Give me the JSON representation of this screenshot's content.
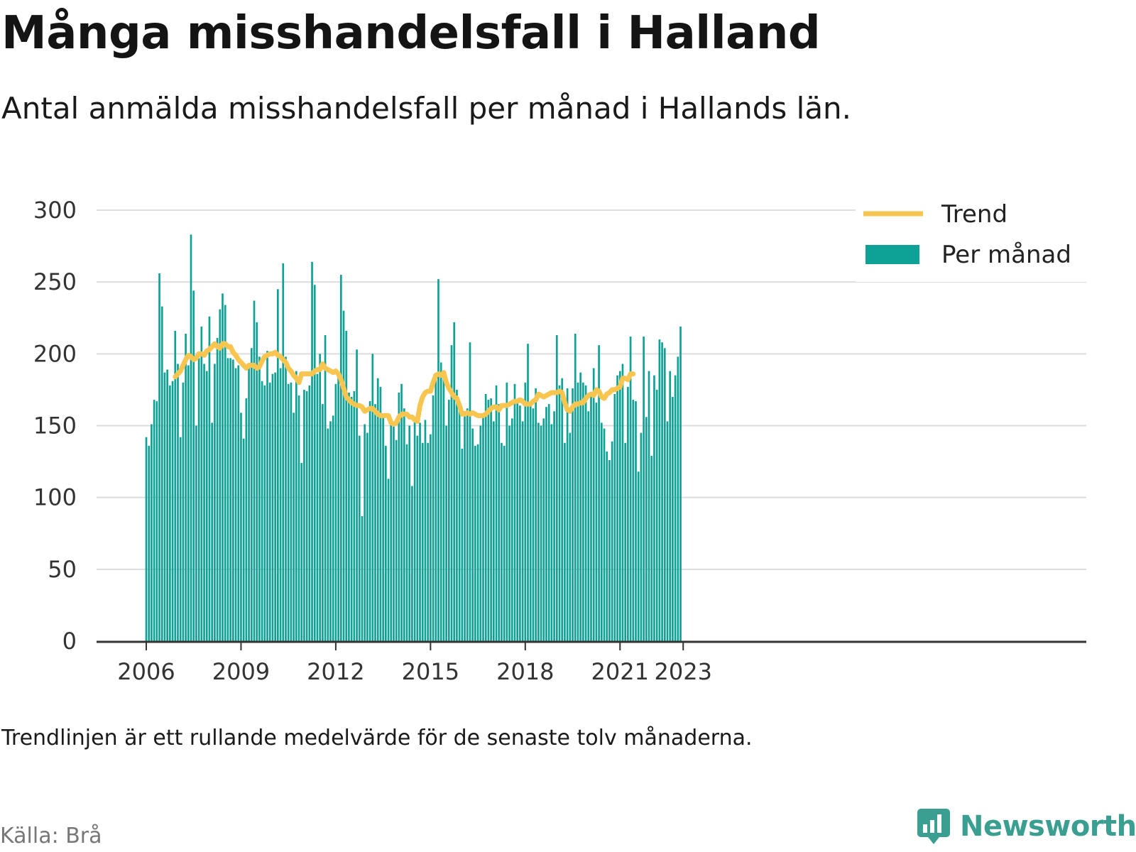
{
  "header": {
    "title": "Många misshandelsfall i Halland",
    "subtitle": "Antal anmälda misshandelsfall per månad i Hallands län."
  },
  "footer": {
    "note": "Trendlinjen är ett rullande medelvärde för de senaste tolv månaderna.",
    "source": "Källa: Brå",
    "brand": "Newsworthy"
  },
  "colors": {
    "bars": "#0ea195",
    "trend": "#f7c550",
    "grid": "#dddddd",
    "axis": "#333333",
    "brand": "#3a9e90"
  },
  "chart_data": {
    "type": "bar",
    "x_start": "2006-01",
    "frequency": "monthly",
    "x_ticks": [
      "2006",
      "2009",
      "2012",
      "2015",
      "2018",
      "2021",
      "2023"
    ],
    "y_ticks": [
      0,
      50,
      100,
      150,
      200,
      250,
      300
    ],
    "ylim": [
      0,
      300
    ],
    "grid": true,
    "legend_position": "top-right",
    "series": [
      {
        "name": "Per månad",
        "type": "bar",
        "values": [
          142,
          136,
          151,
          168,
          167,
          256,
          233,
          187,
          189,
          178,
          181,
          216,
          193,
          142,
          180,
          214,
          192,
          283,
          244,
          150,
          197,
          219,
          193,
          188,
          226,
          152,
          193,
          211,
          231,
          242,
          234,
          197,
          197,
          196,
          190,
          192,
          159,
          141,
          169,
          193,
          204,
          237,
          222,
          198,
          181,
          178,
          202,
          180,
          186,
          187,
          245,
          190,
          263,
          198,
          179,
          180,
          159,
          188,
          171,
          124,
          175,
          174,
          178,
          264,
          248,
          186,
          200,
          165,
          213,
          148,
          153,
          157,
          179,
          188,
          255,
          230,
          216,
          173,
          170,
          174,
          203,
          143,
          87,
          151,
          145,
          167,
          200,
          165,
          183,
          177,
          157,
          136,
          113,
          154,
          150,
          140,
          173,
          179,
          162,
          137,
          150,
          108,
          153,
          143,
          152,
          138,
          154,
          138,
          144,
          171,
          184,
          252,
          194,
          186,
          150,
          168,
          206,
          222,
          175,
          166,
          134,
          160,
          162,
          208,
          148,
          136,
          137,
          150,
          158,
          172,
          168,
          169,
          153,
          178,
          165,
          138,
          136,
          180,
          150,
          155,
          179,
          168,
          164,
          153,
          180,
          207,
          164,
          162,
          176,
          152,
          150,
          155,
          163,
          165,
          151,
          160,
          213,
          178,
          183,
          138,
          176,
          145,
          176,
          214,
          180,
          187,
          180,
          178,
          160,
          171,
          190,
          166,
          206,
          152,
          148,
          132,
          126,
          139,
          172,
          185,
          188,
          193,
          138,
          177,
          212,
          168,
          167,
          118,
          145,
          212,
          156,
          188,
          129,
          185,
          175,
          210,
          208,
          204,
          153,
          188,
          170,
          185,
          198,
          219
        ]
      },
      {
        "name": "Trend",
        "type": "line",
        "start_index": 11,
        "values": [
          184,
          186,
          188,
          192,
          196,
          199,
          198,
          196,
          197,
          200,
          200,
          199,
          202,
          203,
          205,
          207,
          205,
          204,
          207,
          207,
          205,
          205,
          201,
          199,
          196,
          194,
          192,
          190,
          192,
          192,
          192,
          190,
          191,
          195,
          198,
          199,
          200,
          200,
          201,
          199,
          198,
          196,
          194,
          190,
          188,
          185,
          183,
          180,
          186,
          186,
          186,
          186,
          186,
          188,
          189,
          189,
          193,
          190,
          189,
          188,
          187,
          188,
          186,
          182,
          176,
          170,
          168,
          166,
          165,
          164,
          164,
          163,
          160,
          161,
          162,
          162,
          160,
          158,
          157,
          157,
          157,
          157,
          152,
          151,
          152,
          156,
          158,
          158,
          158,
          156,
          156,
          154,
          153,
          164,
          170,
          173,
          174,
          174,
          180,
          185,
          186,
          185,
          187,
          180,
          176,
          173,
          170,
          169,
          164,
          158,
          158,
          159,
          158,
          159,
          158,
          157,
          157,
          157,
          158,
          160,
          162,
          163,
          163,
          161,
          164,
          164,
          164,
          165,
          166,
          167,
          167,
          168,
          167,
          165,
          165,
          165,
          167,
          168,
          172,
          171,
          170,
          171,
          172,
          173,
          173,
          173,
          174,
          173,
          166,
          161,
          160,
          163,
          165,
          165,
          166,
          166,
          169,
          171,
          172,
          171,
          175,
          174,
          170,
          169,
          172,
          173,
          175,
          175,
          176,
          177,
          183,
          183,
          182,
          186,
          186
        ]
      }
    ]
  }
}
